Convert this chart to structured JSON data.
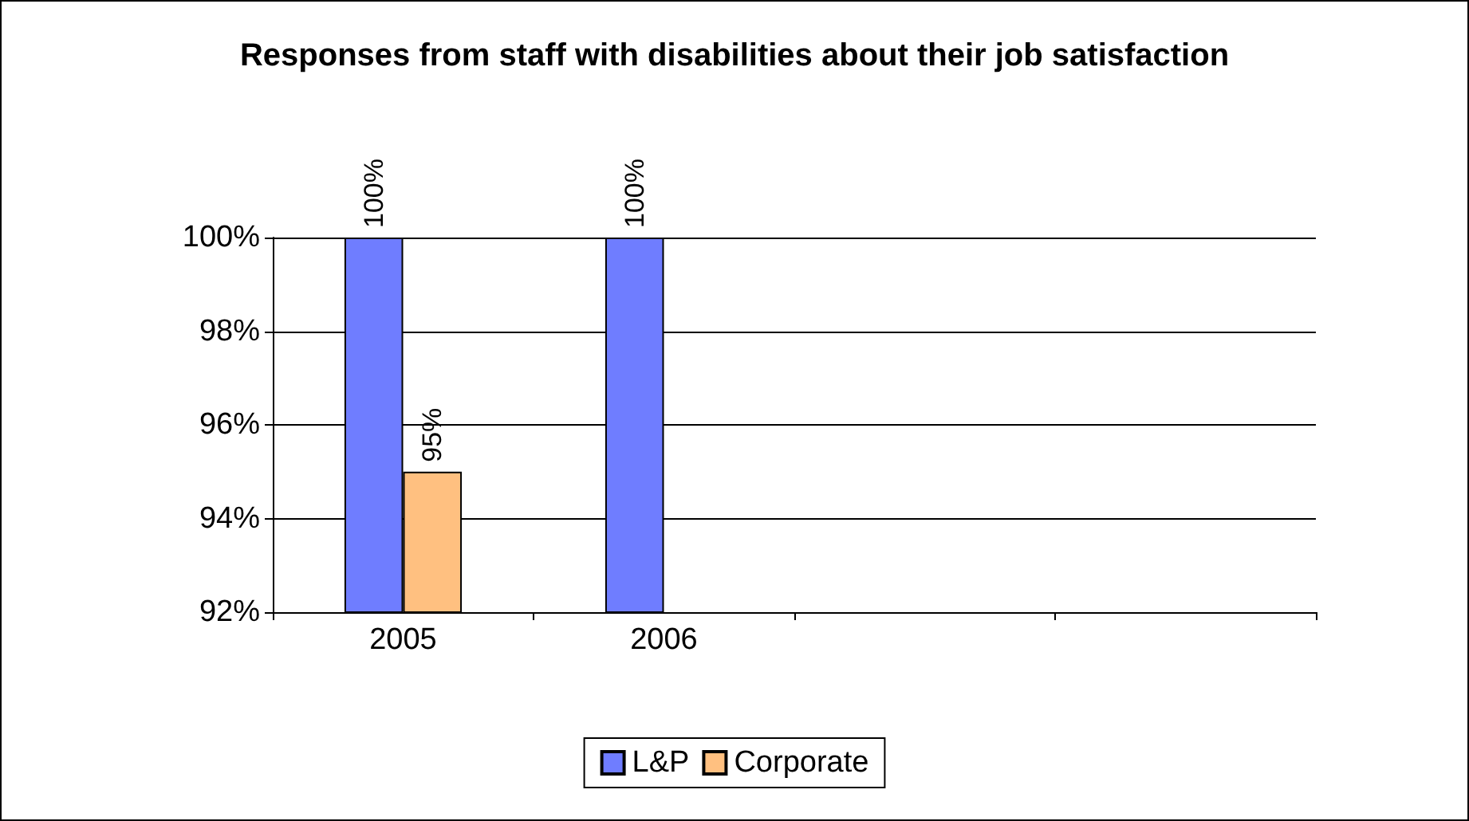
{
  "chart_data": {
    "type": "bar",
    "title": "Responses from staff with disabilities about their job satisfaction",
    "categories": [
      "2005",
      "2006",
      null,
      null
    ],
    "series": [
      {
        "name": "L&P",
        "color": "#6f7dff",
        "values": [
          100,
          100,
          null,
          null
        ],
        "value_labels": [
          "100%",
          "100%",
          null,
          null
        ]
      },
      {
        "name": "Corporate",
        "color": "#ffc080",
        "values": [
          95,
          null,
          null,
          null
        ],
        "value_labels": [
          "95%",
          null,
          null,
          null
        ]
      }
    ],
    "ylim": [
      92,
      100
    ],
    "yticks": [
      {
        "value": 92,
        "label": "92%"
      },
      {
        "value": 94,
        "label": "94%"
      },
      {
        "value": 96,
        "label": "96%"
      },
      {
        "value": 98,
        "label": "98%"
      },
      {
        "value": 100,
        "label": "100%"
      }
    ],
    "grid": "y",
    "legend": "bottom"
  }
}
